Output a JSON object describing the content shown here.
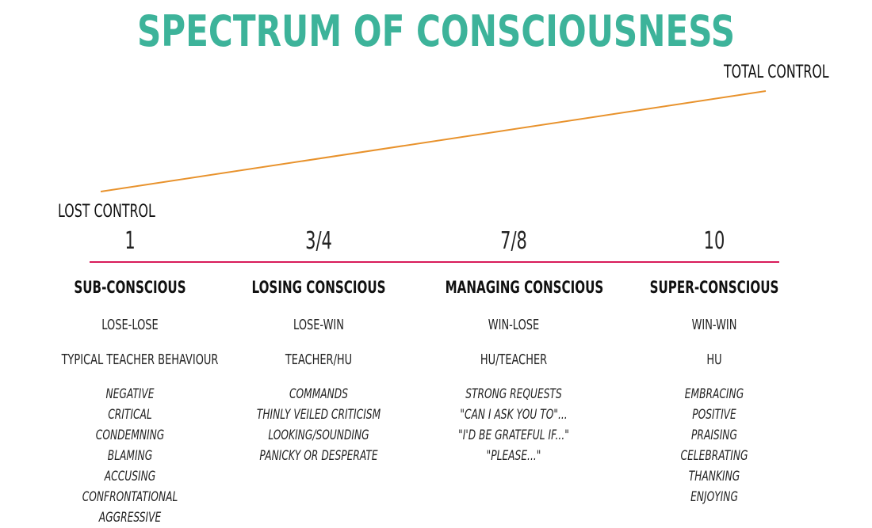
{
  "title": "SPECTRUM OF CONSCIOUSNESS",
  "axis": {
    "low_label": "LOST CONTROL",
    "high_label": "TOTAL CONTROL",
    "line_color": "#e8922c",
    "divider_color": "#d81b5a"
  },
  "colors": {
    "title": "#3db39a"
  },
  "columns": [
    {
      "scale": "1",
      "state": "SUB-CONSCIOUS",
      "outcome": "LOSE-LOSE",
      "relation": "TYPICAL TEACHER BEHAVIOUR",
      "behaviours": [
        "NEGATIVE",
        "CRITICAL",
        "CONDEMNING",
        "BLAMING",
        "ACCUSING",
        "CONFRONTATIONAL",
        "AGGRESSIVE"
      ]
    },
    {
      "scale": "3/4",
      "state": "LOSING CONSCIOUS",
      "outcome": "LOSE-WIN",
      "relation": "TEACHER/HU",
      "behaviours": [
        "COMMANDS",
        "THINLY VEILED CRITICISM",
        "LOOKING/SOUNDING",
        "PANICKY OR DESPERATE"
      ]
    },
    {
      "scale": "7/8",
      "state": "MANAGING CONSCIOUS",
      "outcome": "WIN-LOSE",
      "relation": "HU/TEACHER",
      "behaviours": [
        "STRONG REQUESTS",
        "\"CAN I ASK YOU TO\"...",
        "\"I'D BE GRATEFUL IF...\"",
        "\"PLEASE...\""
      ]
    },
    {
      "scale": "10",
      "state": "SUPER-CONSCIOUS",
      "outcome": "WIN-WIN",
      "relation": "HU",
      "behaviours": [
        "EMBRACING",
        "POSITIVE",
        "PRAISING",
        "CELEBRATING",
        "THANKING",
        "ENJOYING"
      ]
    }
  ]
}
